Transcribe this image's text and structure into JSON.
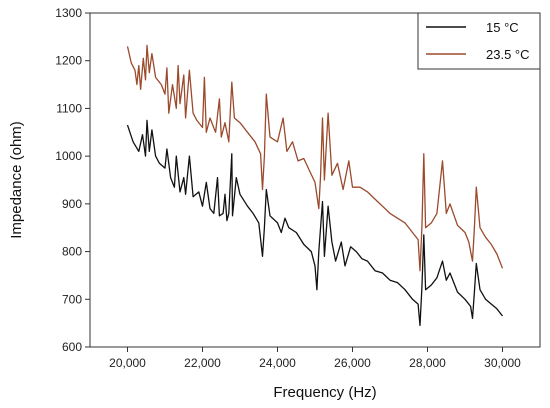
{
  "chart_data": {
    "type": "line",
    "xlabel": "Frequency (Hz)",
    "ylabel": "Impedance (ohm)",
    "xlim": [
      19000,
      31000
    ],
    "ylim": [
      600,
      1300
    ],
    "x_ticks": [
      "20,000",
      "22,000",
      "24,000",
      "26,000",
      "28,000",
      "30,000"
    ],
    "x_tick_values": [
      20000,
      22000,
      24000,
      26000,
      28000,
      30000
    ],
    "y_ticks": [
      "600",
      "700",
      "800",
      "900",
      "1000",
      "1100",
      "1200",
      "1300"
    ],
    "y_tick_values": [
      600,
      700,
      800,
      900,
      1000,
      1100,
      1200,
      1300
    ],
    "grid": false,
    "legend_position": "top-right",
    "series": [
      {
        "name": "15 °C",
        "color": "#111111",
        "points": [
          [
            20000,
            1065
          ],
          [
            20150,
            1030
          ],
          [
            20300,
            1010
          ],
          [
            20400,
            1045
          ],
          [
            20480,
            1000
          ],
          [
            20520,
            1075
          ],
          [
            20580,
            1010
          ],
          [
            20650,
            1055
          ],
          [
            20750,
            1000
          ],
          [
            20850,
            985
          ],
          [
            21000,
            975
          ],
          [
            21050,
            1015
          ],
          [
            21150,
            955
          ],
          [
            21250,
            935
          ],
          [
            21300,
            1000
          ],
          [
            21400,
            925
          ],
          [
            21500,
            955
          ],
          [
            21550,
            920
          ],
          [
            21650,
            1000
          ],
          [
            21750,
            915
          ],
          [
            21900,
            925
          ],
          [
            22000,
            895
          ],
          [
            22100,
            945
          ],
          [
            22200,
            890
          ],
          [
            22300,
            880
          ],
          [
            22400,
            955
          ],
          [
            22450,
            875
          ],
          [
            22550,
            880
          ],
          [
            22600,
            920
          ],
          [
            22650,
            865
          ],
          [
            22700,
            880
          ],
          [
            22780,
            1005
          ],
          [
            22800,
            875
          ],
          [
            22900,
            955
          ],
          [
            23000,
            920
          ],
          [
            23200,
            895
          ],
          [
            23350,
            880
          ],
          [
            23500,
            860
          ],
          [
            23600,
            790
          ],
          [
            23650,
            850
          ],
          [
            23700,
            930
          ],
          [
            23800,
            875
          ],
          [
            24000,
            860
          ],
          [
            24100,
            840
          ],
          [
            24200,
            870
          ],
          [
            24300,
            850
          ],
          [
            24500,
            840
          ],
          [
            24700,
            815
          ],
          [
            24900,
            800
          ],
          [
            25000,
            770
          ],
          [
            25050,
            720
          ],
          [
            25100,
            800
          ],
          [
            25200,
            905
          ],
          [
            25250,
            790
          ],
          [
            25350,
            895
          ],
          [
            25450,
            820
          ],
          [
            25550,
            780
          ],
          [
            25700,
            820
          ],
          [
            25800,
            770
          ],
          [
            25950,
            810
          ],
          [
            26100,
            800
          ],
          [
            26250,
            785
          ],
          [
            26400,
            780
          ],
          [
            26600,
            760
          ],
          [
            26800,
            755
          ],
          [
            27000,
            740
          ],
          [
            27200,
            735
          ],
          [
            27400,
            720
          ],
          [
            27600,
            700
          ],
          [
            27750,
            690
          ],
          [
            27800,
            645
          ],
          [
            27850,
            725
          ],
          [
            27900,
            835
          ],
          [
            27950,
            720
          ],
          [
            28100,
            730
          ],
          [
            28250,
            745
          ],
          [
            28400,
            780
          ],
          [
            28500,
            740
          ],
          [
            28600,
            755
          ],
          [
            28800,
            715
          ],
          [
            29000,
            700
          ],
          [
            29150,
            685
          ],
          [
            29200,
            660
          ],
          [
            29250,
            715
          ],
          [
            29300,
            775
          ],
          [
            29400,
            720
          ],
          [
            29550,
            700
          ],
          [
            29700,
            690
          ],
          [
            29850,
            680
          ],
          [
            30000,
            665
          ]
        ]
      },
      {
        "name": "23.5 °C",
        "color": "#9b4a2c",
        "points": [
          [
            20000,
            1230
          ],
          [
            20100,
            1195
          ],
          [
            20200,
            1180
          ],
          [
            20250,
            1150
          ],
          [
            20300,
            1190
          ],
          [
            20350,
            1140
          ],
          [
            20420,
            1205
          ],
          [
            20480,
            1160
          ],
          [
            20520,
            1232
          ],
          [
            20580,
            1175
          ],
          [
            20650,
            1215
          ],
          [
            20750,
            1165
          ],
          [
            20900,
            1150
          ],
          [
            21000,
            1130
          ],
          [
            21050,
            1185
          ],
          [
            21100,
            1090
          ],
          [
            21200,
            1150
          ],
          [
            21300,
            1100
          ],
          [
            21350,
            1190
          ],
          [
            21400,
            1110
          ],
          [
            21500,
            1170
          ],
          [
            21550,
            1080
          ],
          [
            21650,
            1180
          ],
          [
            21750,
            1090
          ],
          [
            21850,
            1075
          ],
          [
            22000,
            1060
          ],
          [
            22050,
            1165
          ],
          [
            22100,
            1050
          ],
          [
            22200,
            1080
          ],
          [
            22350,
            1050
          ],
          [
            22450,
            1120
          ],
          [
            22500,
            1040
          ],
          [
            22600,
            1070
          ],
          [
            22700,
            1030
          ],
          [
            22780,
            1155
          ],
          [
            22850,
            1080
          ],
          [
            23000,
            1070
          ],
          [
            23200,
            1050
          ],
          [
            23400,
            1030
          ],
          [
            23550,
            1005
          ],
          [
            23600,
            930
          ],
          [
            23650,
            1000
          ],
          [
            23700,
            1130
          ],
          [
            23800,
            1040
          ],
          [
            24000,
            1030
          ],
          [
            24150,
            1080
          ],
          [
            24250,
            1010
          ],
          [
            24400,
            1030
          ],
          [
            24550,
            990
          ],
          [
            24700,
            995
          ],
          [
            24850,
            970
          ],
          [
            25000,
            945
          ],
          [
            25100,
            890
          ],
          [
            25150,
            960
          ],
          [
            25200,
            1080
          ],
          [
            25250,
            950
          ],
          [
            25350,
            1090
          ],
          [
            25450,
            960
          ],
          [
            25600,
            985
          ],
          [
            25750,
            930
          ],
          [
            25900,
            990
          ],
          [
            26000,
            935
          ],
          [
            26200,
            935
          ],
          [
            26400,
            925
          ],
          [
            26600,
            910
          ],
          [
            26800,
            895
          ],
          [
            27000,
            880
          ],
          [
            27200,
            870
          ],
          [
            27400,
            860
          ],
          [
            27600,
            840
          ],
          [
            27750,
            825
          ],
          [
            27800,
            760
          ],
          [
            27850,
            850
          ],
          [
            27900,
            1005
          ],
          [
            27950,
            850
          ],
          [
            28100,
            860
          ],
          [
            28250,
            880
          ],
          [
            28400,
            990
          ],
          [
            28500,
            880
          ],
          [
            28600,
            900
          ],
          [
            28800,
            855
          ],
          [
            29000,
            840
          ],
          [
            29100,
            820
          ],
          [
            29200,
            780
          ],
          [
            29250,
            850
          ],
          [
            29300,
            935
          ],
          [
            29400,
            850
          ],
          [
            29550,
            830
          ],
          [
            29700,
            815
          ],
          [
            29850,
            795
          ],
          [
            30000,
            765
          ]
        ]
      }
    ]
  }
}
